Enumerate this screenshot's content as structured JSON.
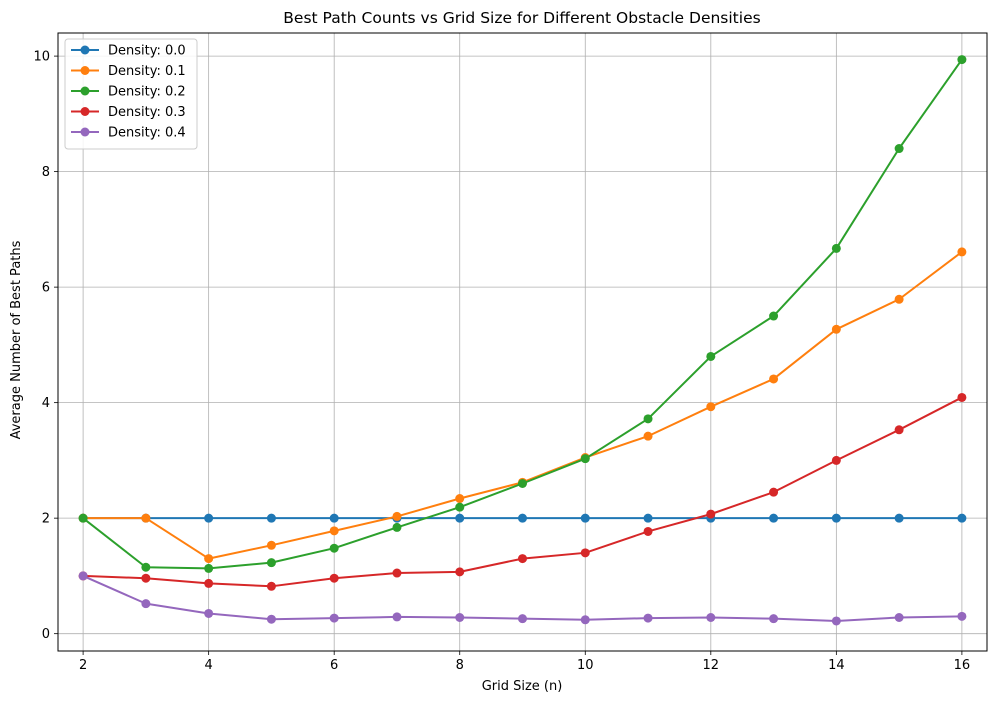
{
  "chart_data": {
    "type": "line",
    "title": "Best Path Counts vs Grid Size for Different Obstacle Densities",
    "xlabel": "Grid Size (n)",
    "ylabel": "Average Number of Best Paths",
    "xlim": [
      1.6,
      16.4
    ],
    "ylim": [
      -0.3,
      10.4
    ],
    "xticks": [
      2,
      4,
      6,
      8,
      10,
      12,
      14,
      16
    ],
    "yticks": [
      0,
      2,
      4,
      6,
      8,
      10
    ],
    "grid": true,
    "legend_position": "top-left",
    "x": [
      2,
      3,
      4,
      5,
      6,
      7,
      8,
      9,
      10,
      11,
      12,
      13,
      14,
      15,
      16
    ],
    "series": [
      {
        "name": "Density: 0.0",
        "color": "#1f77b4",
        "values": [
          2,
          2,
          2,
          2,
          2,
          2,
          2,
          2,
          2,
          2,
          2,
          2,
          2,
          2,
          2
        ]
      },
      {
        "name": "Density: 0.1",
        "color": "#ff7f0e",
        "values": [
          2,
          2,
          1.3,
          1.53,
          1.78,
          2.03,
          2.34,
          2.62,
          3.05,
          3.42,
          3.93,
          4.41,
          5.27,
          5.79,
          6.61
        ]
      },
      {
        "name": "Density: 0.2",
        "color": "#2ca02c",
        "values": [
          2,
          1.15,
          1.13,
          1.23,
          1.48,
          1.84,
          2.19,
          2.6,
          3.03,
          3.72,
          4.8,
          5.5,
          6.67,
          8.4,
          9.94
        ]
      },
      {
        "name": "Density: 0.3",
        "color": "#d62728",
        "values": [
          1,
          0.96,
          0.87,
          0.82,
          0.96,
          1.05,
          1.07,
          1.3,
          1.4,
          1.77,
          2.07,
          2.45,
          3.0,
          3.53,
          4.09
        ]
      },
      {
        "name": "Density: 0.4",
        "color": "#9467bd",
        "values": [
          1,
          0.52,
          0.35,
          0.25,
          0.27,
          0.29,
          0.28,
          0.26,
          0.24,
          0.27,
          0.28,
          0.26,
          0.22,
          0.28,
          0.3
        ]
      }
    ]
  }
}
